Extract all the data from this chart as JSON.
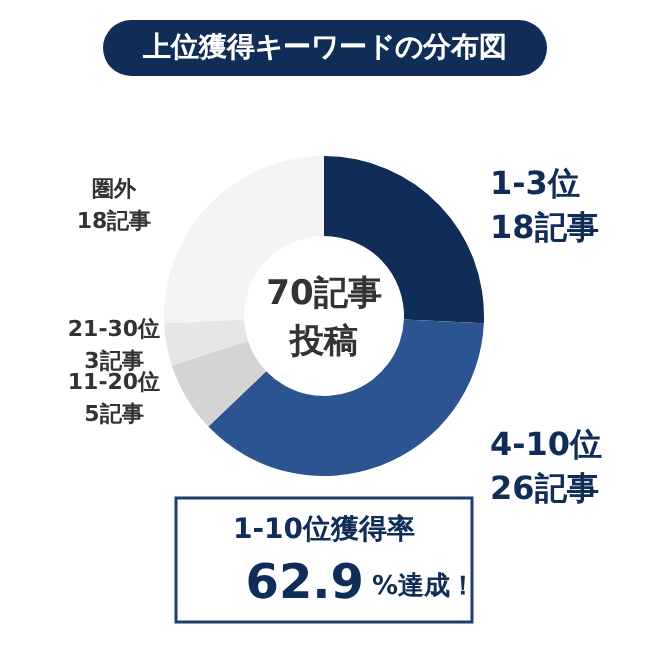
{
  "chart_data": {
    "type": "donut",
    "title": "上位獲得キーワードの分布図",
    "categories": [
      "1-3位",
      "4-10位",
      "11-20位",
      "21-30位",
      "圏外"
    ],
    "values": [
      18,
      26,
      5,
      3,
      18
    ],
    "value_labels": [
      "18記事",
      "26記事",
      "5記事",
      "3記事",
      "18記事"
    ],
    "colors": [
      "#0f2d57",
      "#2c5490",
      "#d4d4d4",
      "#e6e6e6",
      "#f4f4f4"
    ],
    "legend": false,
    "annotations": [
      "70記事",
      "投稿",
      "1-10位獲得率",
      "62.9",
      "%達成！"
    ]
  }
}
